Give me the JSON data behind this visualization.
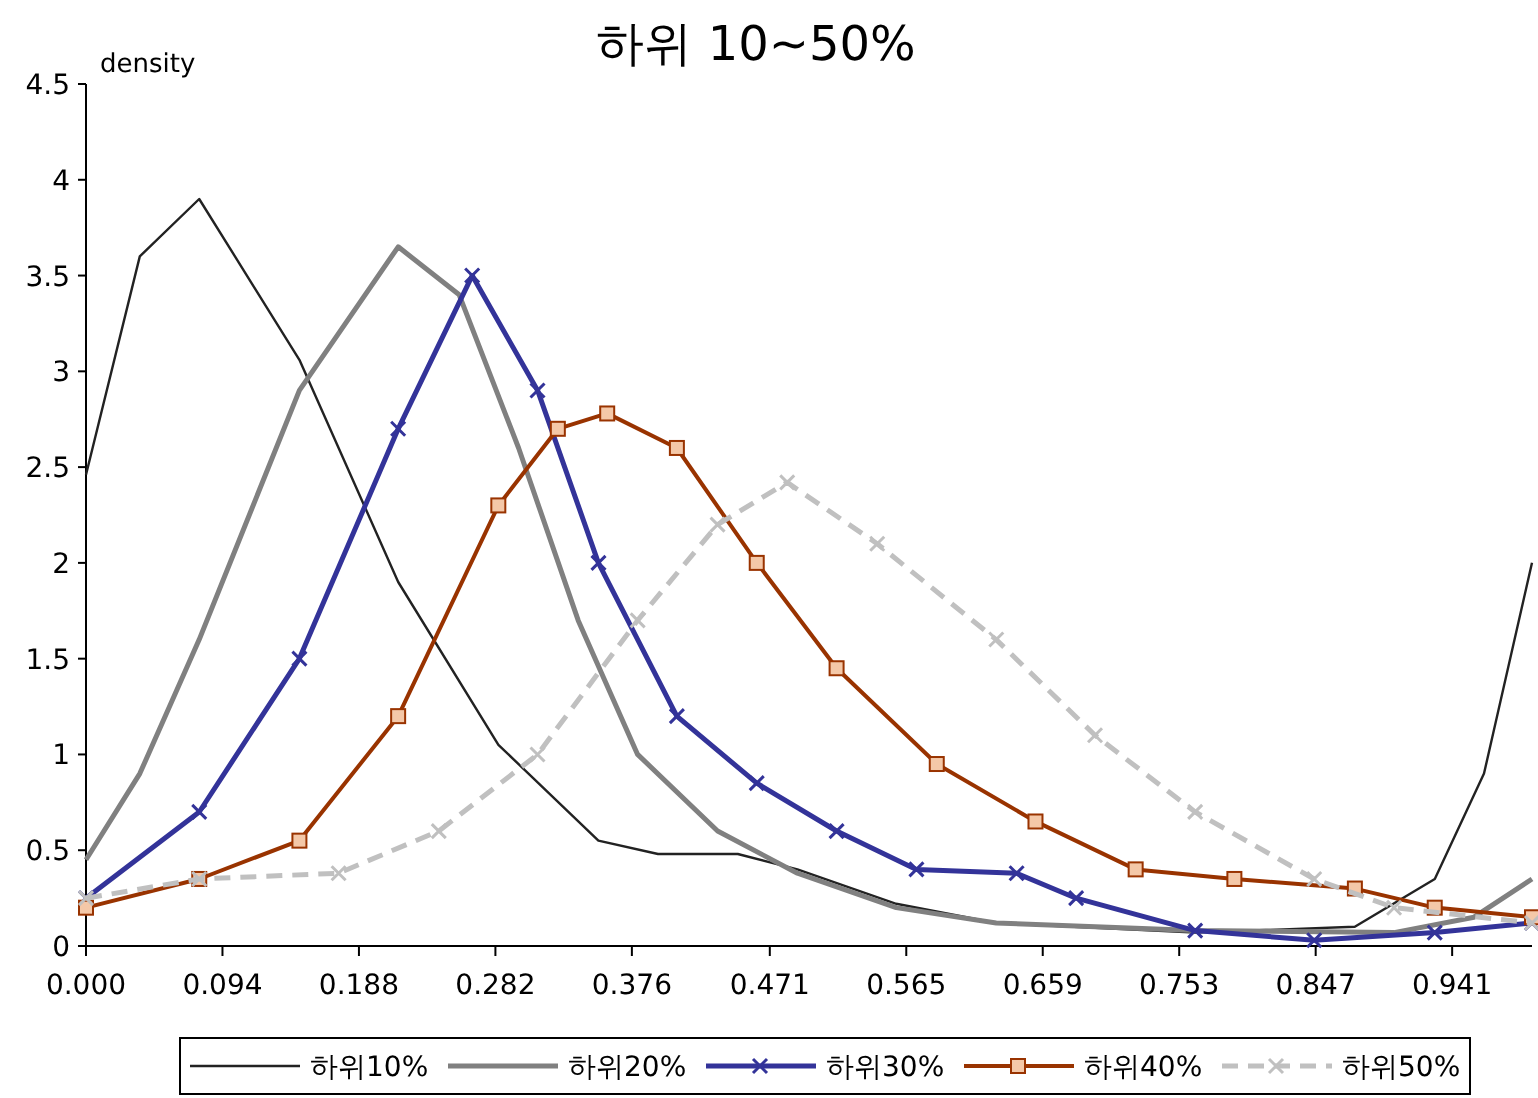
{
  "chart_data": {
    "type": "line",
    "title": "하위 10~50%",
    "ylabel": "density",
    "xlim": [
      0,
      0.996
    ],
    "ylim": [
      0,
      4.5
    ],
    "xticks": [
      {
        "value": 0,
        "label": "0.000"
      },
      0.094,
      0.188,
      0.282,
      0.376,
      0.471,
      0.565,
      0.659,
      0.753,
      0.847,
      0.941
    ],
    "yticks": [
      0,
      0.5,
      1,
      1.5,
      2,
      2.5,
      3,
      3.5,
      4,
      4.5
    ],
    "legend": "bottom",
    "grid": false,
    "series": [
      {
        "name": "하위10%",
        "color": "#222222",
        "marker": "none",
        "line_style": "solid",
        "x": [
          0,
          0.037,
          0.078,
          0.147,
          0.215,
          0.284,
          0.353,
          0.394,
          0.449,
          0.49,
          0.558,
          0.627,
          0.764,
          0.874,
          0.929,
          0.963,
          0.996
        ],
        "values": [
          2.46,
          3.6,
          3.9,
          3.06,
          1.9,
          1.05,
          0.55,
          0.48,
          0.48,
          0.4,
          0.22,
          0.12,
          0.07,
          0.1,
          0.35,
          0.9,
          2.0
        ]
      },
      {
        "name": "하위20%",
        "color": "#808080",
        "marker": "none",
        "line_style": "solid",
        "x": [
          0,
          0.037,
          0.078,
          0.147,
          0.215,
          0.257,
          0.298,
          0.339,
          0.38,
          0.435,
          0.49,
          0.558,
          0.627,
          0.764,
          0.901,
          0.956,
          0.996
        ],
        "values": [
          0.45,
          0.9,
          1.6,
          2.9,
          3.65,
          3.4,
          2.6,
          1.7,
          1.0,
          0.6,
          0.38,
          0.2,
          0.12,
          0.08,
          0.07,
          0.15,
          0.35
        ]
      },
      {
        "name": "하위30%",
        "color": "#333399",
        "marker": "cross",
        "line_style": "solid",
        "x": [
          0,
          0.078,
          0.147,
          0.215,
          0.266,
          0.311,
          0.353,
          0.407,
          0.462,
          0.517,
          0.572,
          0.641,
          0.682,
          0.764,
          0.846,
          0.929,
          0.996
        ],
        "values": [
          0.25,
          0.7,
          1.5,
          2.7,
          3.5,
          2.9,
          2.0,
          1.2,
          0.85,
          0.6,
          0.4,
          0.38,
          0.25,
          0.08,
          0.03,
          0.07,
          0.12
        ]
      },
      {
        "name": "하위40%",
        "color": "#993300",
        "marker": "square",
        "line_style": "solid",
        "x": [
          0,
          0.078,
          0.147,
          0.215,
          0.284,
          0.325,
          0.359,
          0.407,
          0.462,
          0.517,
          0.586,
          0.654,
          0.723,
          0.791,
          0.874,
          0.929,
          0.996
        ],
        "values": [
          0.2,
          0.35,
          0.55,
          1.2,
          2.3,
          2.7,
          2.78,
          2.6,
          2.0,
          1.45,
          0.95,
          0.65,
          0.4,
          0.35,
          0.3,
          0.2,
          0.15
        ]
      },
      {
        "name": "하위50%",
        "color": "#c0c0c0",
        "marker": "cross",
        "line_style": "dashed",
        "x": [
          0,
          0.078,
          0.174,
          0.243,
          0.311,
          0.38,
          0.435,
          0.483,
          0.545,
          0.627,
          0.695,
          0.764,
          0.846,
          0.901,
          0.996
        ],
        "values": [
          0.25,
          0.35,
          0.38,
          0.6,
          1.0,
          1.7,
          2.2,
          2.42,
          2.1,
          1.6,
          1.1,
          0.7,
          0.35,
          0.2,
          0.12
        ]
      }
    ]
  }
}
